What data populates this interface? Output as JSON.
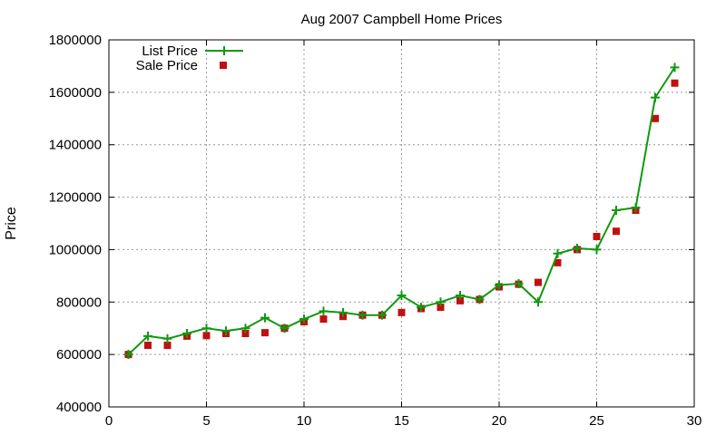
{
  "chart_data": {
    "type": "line",
    "title": "Aug 2007 Campbell Home Prices",
    "xlabel": "",
    "ylabel": "Price",
    "xlim": [
      0,
      30
    ],
    "ylim": [
      400000,
      1800000
    ],
    "xticks": [
      0,
      5,
      10,
      15,
      20,
      25,
      30
    ],
    "yticks": [
      400000,
      600000,
      800000,
      1000000,
      1200000,
      1400000,
      1600000,
      1800000
    ],
    "grid": true,
    "legend_position": "top-left",
    "series": [
      {
        "name": "List Price",
        "style": "line-with-plus-markers",
        "color": "#109910",
        "x": [
          1,
          2,
          3,
          4,
          5,
          6,
          7,
          8,
          9,
          10,
          11,
          12,
          13,
          14,
          15,
          16,
          17,
          18,
          19,
          20,
          21,
          22,
          23,
          24,
          25,
          26,
          27,
          28,
          29
        ],
        "y": [
          600000,
          670000,
          660000,
          680000,
          700000,
          690000,
          700000,
          740000,
          700000,
          735000,
          765000,
          760000,
          750000,
          750000,
          825000,
          780000,
          800000,
          825000,
          810000,
          865000,
          870000,
          800000,
          985000,
          1005000,
          1000000,
          1150000,
          1160000,
          1580000,
          1695000
        ]
      },
      {
        "name": "Sale Price",
        "style": "square-markers",
        "color": "#c01010",
        "x": [
          1,
          2,
          3,
          4,
          5,
          6,
          7,
          8,
          9,
          10,
          11,
          12,
          13,
          14,
          15,
          16,
          17,
          18,
          19,
          20,
          21,
          22,
          23,
          24,
          25,
          26,
          27,
          28,
          29
        ],
        "y": [
          600000,
          635000,
          635000,
          670000,
          672000,
          680000,
          680000,
          683000,
          700000,
          725000,
          735000,
          745000,
          750000,
          750000,
          760000,
          775000,
          780000,
          805000,
          810000,
          858000,
          868000,
          875000,
          950000,
          1000000,
          1050000,
          1070000,
          1150000,
          1500000,
          1635000
        ]
      }
    ]
  }
}
